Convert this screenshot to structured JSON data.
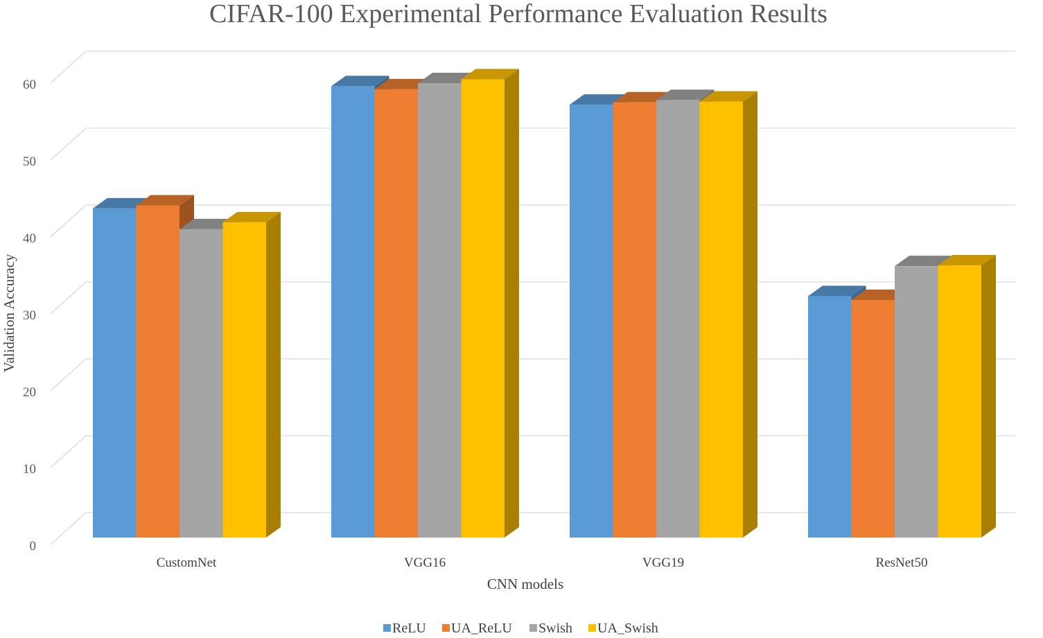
{
  "chart_data": {
    "type": "bar",
    "title": "CIFAR-100 Experimental Performance Evaluation Results",
    "xlabel": "CNN models",
    "ylabel": "Validation Accuracy",
    "categories": [
      "CustomNet",
      "VGG16",
      "VGG19",
      "ResNet50"
    ],
    "series": [
      {
        "name": "ReLU",
        "color": "#5b9bd5",
        "values": [
          42.8,
          58.7,
          56.3,
          31.4
        ]
      },
      {
        "name": "UA_ReLU",
        "color": "#ed7d31",
        "values": [
          43.2,
          58.3,
          56.6,
          30.9
        ]
      },
      {
        "name": "Swish",
        "color": "#a5a5a5",
        "values": [
          40.1,
          59.1,
          56.9,
          35.3
        ]
      },
      {
        "name": "UA_Swish",
        "color": "#ffc000",
        "values": [
          41.0,
          59.6,
          56.7,
          35.4
        ]
      }
    ],
    "ylim": [
      0,
      60
    ],
    "yticks": [
      "0",
      "10",
      "20",
      "30",
      "40",
      "50",
      "60"
    ],
    "grid": true,
    "legend": "bottom"
  }
}
